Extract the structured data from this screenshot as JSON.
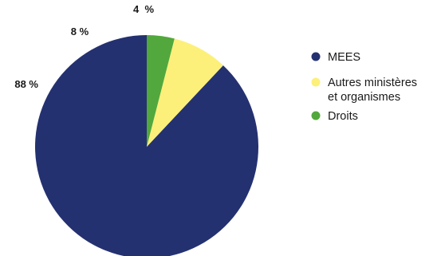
{
  "chart_data": {
    "type": "pie",
    "title": "",
    "slices": [
      {
        "label": "MEES",
        "value": 88,
        "display": "88 %",
        "color": "#243170"
      },
      {
        "label": "Autres ministères et organismes",
        "label_lines": [
          "Autres ministères",
          "et organismes"
        ],
        "value": 8,
        "display": "8 %",
        "color": "#fcf07a"
      },
      {
        "label": "Droits",
        "value": 4,
        "display": "4  %",
        "color": "#52a83c"
      }
    ],
    "start_angle_deg": 0,
    "direction": "counterclockwise",
    "legend_position": "right"
  }
}
